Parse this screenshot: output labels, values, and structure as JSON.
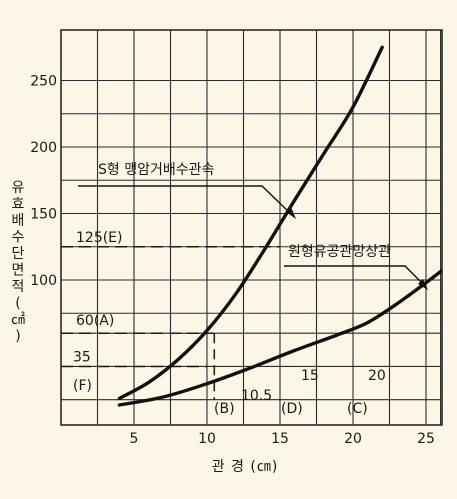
{
  "chart_data": {
    "type": "line",
    "xlabel": "관 경 (㎝)",
    "ylabel": "유효배수단면적(㎠)",
    "xlim": [
      0,
      28
    ],
    "ylim": [
      0,
      275
    ],
    "x_ticks": [
      5,
      10,
      15,
      20,
      25
    ],
    "y_ticks": [
      100,
      150,
      200,
      250
    ],
    "grid": true,
    "series": [
      {
        "name": "S형 맹암거배수관속",
        "x": [
          4,
          6,
          8,
          10,
          12,
          14,
          16,
          18,
          20,
          22
        ],
        "y": [
          11,
          23,
          40,
          62,
          90,
          124,
          160,
          195,
          230,
          275
        ]
      },
      {
        "name": "원형유공관망상관",
        "x": [
          4,
          7,
          10,
          13,
          16,
          19,
          21,
          23,
          25,
          26.2
        ],
        "y": [
          6,
          12,
          22,
          34,
          47,
          59,
          68,
          82,
          98,
          108
        ]
      }
    ],
    "reference_lines": [
      {
        "label": "125(E)",
        "y": 125,
        "x_end": 15
      },
      {
        "label": "60(A)",
        "y": 60,
        "x_end": 10.5
      },
      {
        "label": "35",
        "sublabel": "(F)",
        "y": 35,
        "x_end": 10
      }
    ],
    "drop_lines": [
      {
        "x": 10.5,
        "from_y": 60
      }
    ],
    "annotations": [
      {
        "text": "(B)"
      },
      {
        "text": "10.5"
      },
      {
        "text": "(D)"
      },
      {
        "text": "15"
      },
      {
        "text": "(C)"
      },
      {
        "text": "20"
      }
    ]
  }
}
